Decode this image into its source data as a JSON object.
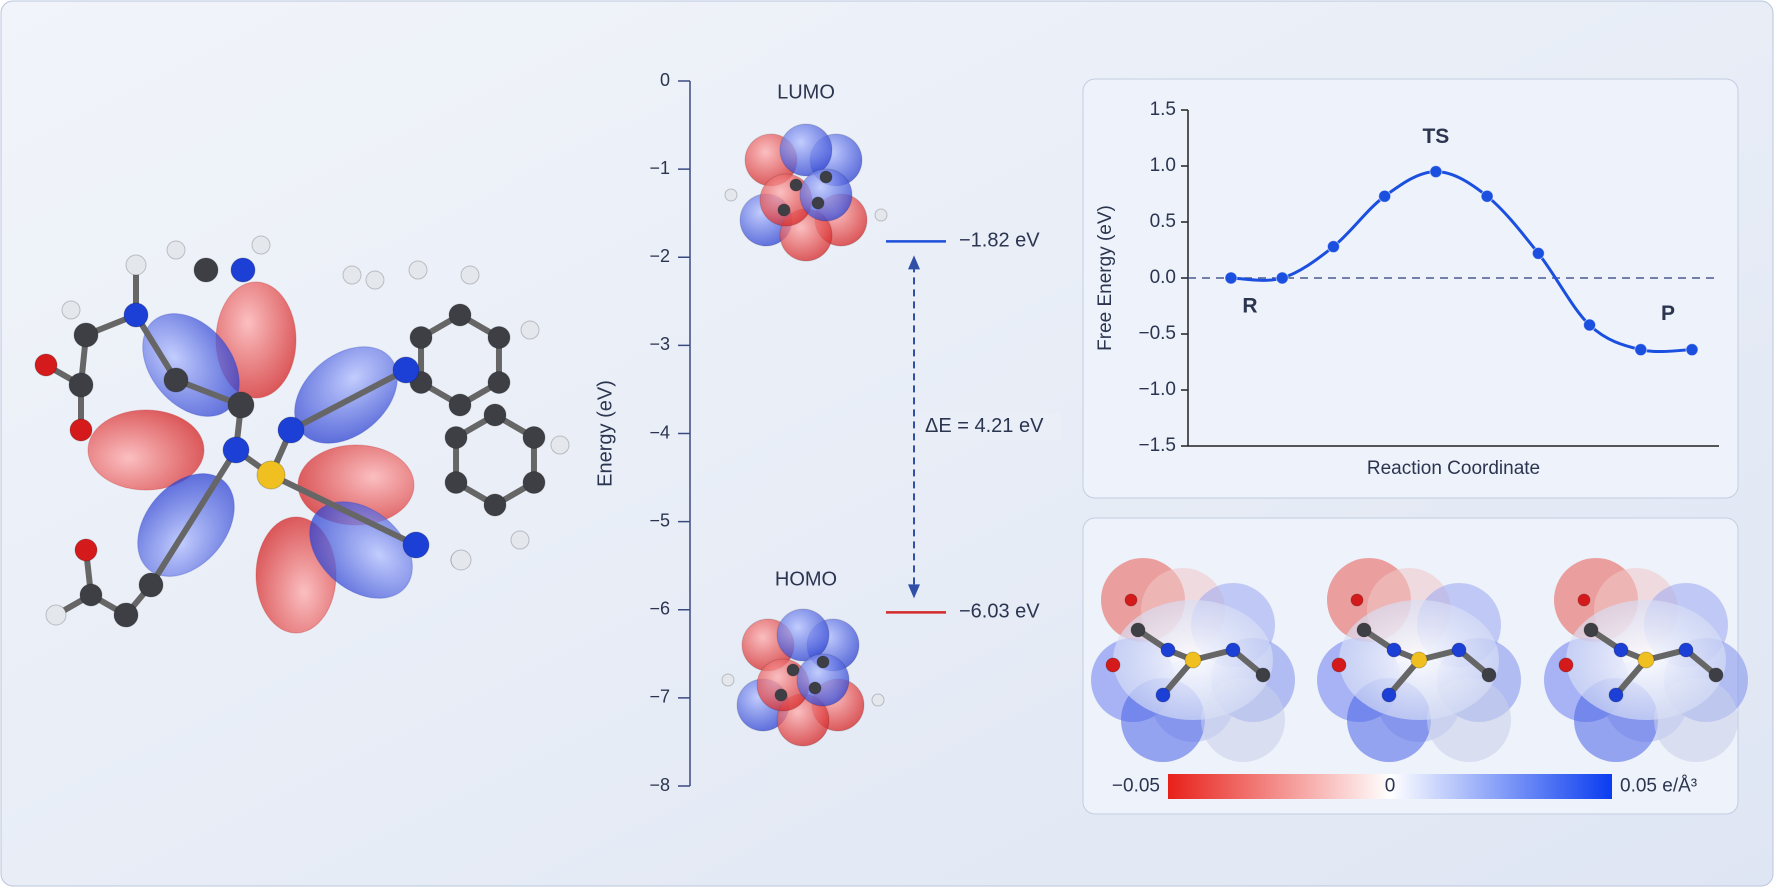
{
  "chart_data": [
    {
      "type": "energy-levels",
      "ylabel": "Energy (eV)",
      "ylim": [
        -8,
        0
      ],
      "yticks": [
        0,
        {
          "value": -1,
          "label": "−1"
        },
        {
          "value": -2,
          "label": "−2"
        },
        {
          "value": -3,
          "label": "−3"
        },
        {
          "value": -4,
          "label": "−4"
        },
        {
          "value": -5,
          "label": "−5"
        },
        {
          "value": -6,
          "label": "−6"
        },
        {
          "value": -7,
          "label": "−7"
        },
        {
          "value": -8,
          "label": "−8"
        }
      ],
      "categories": [
        "LUMO",
        "HOMO"
      ],
      "values": [
        -1.82,
        -6.03
      ],
      "value_labels": [
        "−1.82 eV",
        "−6.03 eV"
      ],
      "colors": [
        "#1e4fd8",
        "#d42a2a"
      ],
      "annotation": "ΔE = 4.21 eV"
    },
    {
      "type": "line",
      "ylabel": "Free Energy (eV)",
      "xlabel": "Reaction Coordinate",
      "ylim": [
        -1.5,
        1.5
      ],
      "yticks": [
        1.5,
        {
          "value": 1.0,
          "label": "1.0"
        },
        0.5,
        {
          "value": 0.0,
          "label": "0.0"
        },
        {
          "value": -0.5,
          "label": "−0.5"
        },
        {
          "value": -1.0,
          "label": "−1.0"
        },
        {
          "value": -1.5,
          "label": "−1.5"
        }
      ],
      "categories": [
        null,
        null,
        null,
        null,
        null,
        null,
        null,
        null,
        null,
        null
      ],
      "values": [
        0.0,
        0.0,
        0.28,
        0.73,
        0.95,
        0.73,
        0.22,
        -0.42,
        -0.64,
        -0.64
      ],
      "point_labels": [
        "R",
        null,
        null,
        null,
        "TS",
        null,
        null,
        null,
        null,
        "P"
      ],
      "color": "#1a4fe0",
      "reference_line": 0
    },
    {
      "type": "colorbar",
      "lim": [
        -0.05,
        0.05
      ],
      "ticks": [
        {
          "value": -0.05,
          "label": "−0.05"
        },
        0,
        {
          "value": 0.05,
          "label": "0.05 e/Å³"
        }
      ],
      "colors": [
        "#e8201a",
        "#ffffff",
        "#0a3cf0"
      ]
    }
  ]
}
